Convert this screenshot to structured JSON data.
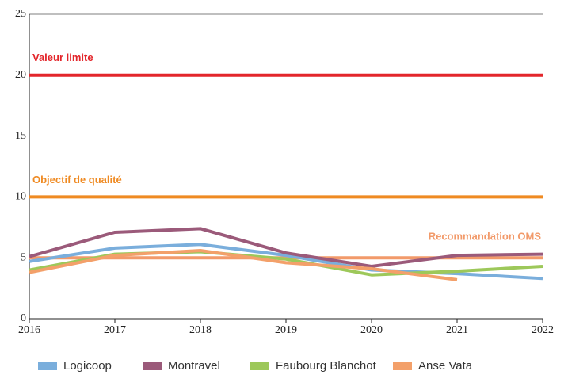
{
  "chart_data": {
    "type": "line",
    "x": [
      2016,
      2017,
      2018,
      2019,
      2020,
      2021,
      2022
    ],
    "xlim": [
      2016,
      2022
    ],
    "xticks": [
      2016,
      2017,
      2018,
      2019,
      2020,
      2021,
      2022
    ],
    "ylim": [
      0,
      25
    ],
    "yticks": [
      0,
      5,
      10,
      15,
      20,
      25
    ],
    "grid": true,
    "reference_lines": [
      {
        "label": "Valeur limite",
        "value": 20,
        "color": "#e3262b"
      },
      {
        "label": "Objectif de qualité",
        "value": 10,
        "color": "#ef8a22"
      },
      {
        "label": "Recommandation OMS",
        "value": 5,
        "color": "#f29a6a"
      }
    ],
    "series": [
      {
        "name": "Logicoop",
        "color": "#7aaedc",
        "values": [
          4.7,
          5.8,
          6.1,
          5.2,
          4.0,
          3.7,
          3.3
        ]
      },
      {
        "name": "Montravel",
        "color": "#9b5a7a",
        "values": [
          5.1,
          7.1,
          7.4,
          5.4,
          4.3,
          5.2,
          5.3
        ]
      },
      {
        "name": "Faubourg Blanchot",
        "color": "#9dc85a",
        "values": [
          4.0,
          5.3,
          5.5,
          4.9,
          3.6,
          3.9,
          4.3
        ]
      },
      {
        "name": "Anse Vata",
        "color": "#f3a06a",
        "values": [
          3.8,
          5.2,
          5.6,
          4.6,
          4.1,
          3.2,
          null
        ]
      }
    ],
    "legend": "bottom"
  }
}
